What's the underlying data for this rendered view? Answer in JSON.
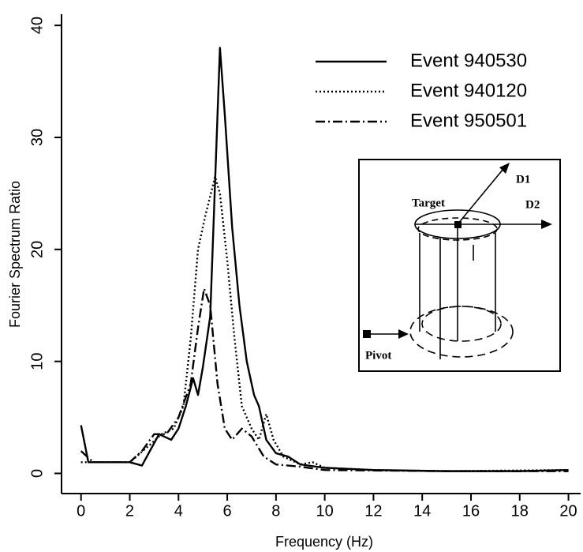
{
  "chart_data": {
    "type": "line",
    "x_label": "Frequency (Hz)",
    "y_label": "Fourier Spectrum Ratio",
    "xlim": [
      -0.8,
      20.5
    ],
    "ylim": [
      -1.8,
      41
    ],
    "xticks": [
      0,
      2,
      4,
      6,
      8,
      10,
      12,
      14,
      16,
      18,
      20
    ],
    "yticks": [
      0,
      10,
      20,
      30,
      40
    ],
    "legend": "top-right",
    "annotations": [
      "Target",
      "D1",
      "D2",
      "Pivot"
    ],
    "series": [
      {
        "name": "Event 940530",
        "color": "#000000",
        "linestyle": "solid",
        "x": [
          0,
          0.3,
          1,
          2,
          2.5,
          3.2,
          3.7,
          4.0,
          4.3,
          4.6,
          4.8,
          5.0,
          5.3,
          5.5,
          5.7,
          5.9,
          6.2,
          6.5,
          6.8,
          7.1,
          7.3,
          7.6,
          8.0,
          8.5,
          9,
          10,
          12,
          15,
          18,
          20
        ],
        "values": [
          4.3,
          1,
          1,
          1,
          0.7,
          3.5,
          3,
          4,
          6,
          8.5,
          7,
          9.5,
          14,
          26,
          38,
          32,
          22,
          15,
          10,
          7,
          6,
          3,
          1.8,
          1.5,
          0.8,
          0.5,
          0.3,
          0.2,
          0.2,
          0.3
        ]
      },
      {
        "name": "Event 940120",
        "color": "#000000",
        "linestyle": "dotted",
        "x": [
          0,
          1,
          2,
          2.8,
          3.3,
          3.8,
          4.2,
          4.5,
          4.8,
          5.1,
          5.5,
          5.7,
          6.0,
          6.3,
          6.6,
          7.0,
          7.3,
          7.6,
          7.9,
          8.3,
          9,
          9.5,
          10,
          12,
          15,
          20
        ],
        "values": [
          1,
          1,
          1,
          2.5,
          3.5,
          4,
          6,
          12,
          20,
          23,
          26.5,
          25,
          19,
          12,
          6,
          4,
          3,
          5.3,
          3,
          1.5,
          0.8,
          1,
          0.5,
          0.3,
          0.2,
          0.3
        ]
      },
      {
        "name": "Event 950501",
        "color": "#000000",
        "linestyle": "dashdot",
        "x": [
          0,
          0.5,
          2,
          2.5,
          3.0,
          3.5,
          4.0,
          4.5,
          4.8,
          5.05,
          5.3,
          5.6,
          5.9,
          6.2,
          6.6,
          7.0,
          7.5,
          8,
          9,
          10,
          15,
          20
        ],
        "values": [
          2,
          1,
          1,
          2,
          3.5,
          3.5,
          5,
          8,
          13,
          16.5,
          15,
          8,
          4,
          3,
          4,
          3.3,
          1.5,
          0.8,
          0.6,
          0.3,
          0.2,
          0.2
        ]
      }
    ]
  }
}
